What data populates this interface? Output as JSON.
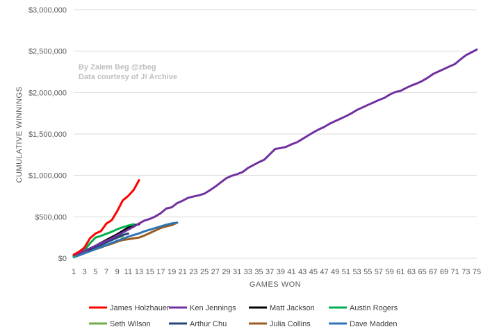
{
  "chart_data": {
    "type": "line",
    "title": "",
    "xlabel": "GAMES WON",
    "ylabel": "CUMULATIVE WINNINGS",
    "xlim": [
      1,
      75
    ],
    "ylim": [
      0,
      3000000
    ],
    "x_ticks": [
      1,
      3,
      5,
      7,
      9,
      11,
      13,
      15,
      17,
      19,
      21,
      23,
      25,
      27,
      29,
      31,
      33,
      35,
      37,
      39,
      41,
      43,
      45,
      47,
      49,
      51,
      53,
      55,
      57,
      59,
      61,
      63,
      65,
      67,
      69,
      71,
      73,
      75
    ],
    "y_ticks": [
      {
        "value": 0,
        "label": "$0"
      },
      {
        "value": 500000,
        "label": "$500,000"
      },
      {
        "value": 1000000,
        "label": "$1,000,000"
      },
      {
        "value": 1500000,
        "label": "$1,500,000"
      },
      {
        "value": 2000000,
        "label": "$2,000,000"
      },
      {
        "value": 2500000,
        "label": "$2,500,000"
      },
      {
        "value": 3000000,
        "label": "$3,000,000"
      }
    ],
    "grid": true,
    "legend_position": "bottom",
    "annotations": [
      "By Zaiem Beg @zbeg",
      "Data courtesy of J! Archive"
    ],
    "series": [
      {
        "name": "Seth Wilson",
        "color": "#70ad47",
        "values": [
          20000,
          45000,
          80000,
          110000,
          140000,
          170000,
          200000,
          225000,
          250000,
          265000
        ]
      },
      {
        "name": "Arthur Chu",
        "color": "#264478",
        "values": [
          15000,
          40000,
          70000,
          100000,
          130000,
          160000,
          190000,
          220000,
          250000,
          280000,
          298000
        ]
      },
      {
        "name": "Matt Jackson",
        "color": "#000000",
        "values": [
          20000,
          50000,
          85000,
          115000,
          150000,
          185000,
          220000,
          255000,
          290000,
          330000,
          370000,
          400000,
          411000
        ]
      },
      {
        "name": "Julia Collins",
        "color": "#9c5b1c",
        "values": [
          25000,
          45000,
          65000,
          85000,
          110000,
          130000,
          155000,
          175000,
          200000,
          220000,
          230000,
          240000,
          250000,
          275000,
          305000,
          335000,
          365000,
          385000,
          400000,
          429000
        ]
      },
      {
        "name": "Dave Madden",
        "color": "#2e75b6",
        "values": [
          15000,
          35000,
          60000,
          85000,
          110000,
          135000,
          160000,
          185000,
          210000,
          235000,
          260000,
          280000,
          300000,
          325000,
          345000,
          365000,
          385000,
          405000,
          420000,
          430000
        ]
      },
      {
        "name": "Austin Rogers",
        "color": "#00b050",
        "values": [
          25000,
          60000,
          100000,
          180000,
          250000,
          270000,
          295000,
          320000,
          350000,
          375000,
          395000,
          411000
        ]
      },
      {
        "name": "Ken Jennings",
        "color": "#7030a0",
        "values": [
          38000,
          60000,
          90000,
          120000,
          150000,
          180000,
          210000,
          240000,
          275000,
          310000,
          345000,
          380000,
          420000,
          455000,
          475000,
          505000,
          545000,
          600000,
          615000,
          665000,
          695000,
          730000,
          745000,
          760000,
          780000,
          820000,
          865000,
          915000,
          965000,
          995000,
          1015000,
          1040000,
          1090000,
          1125000,
          1160000,
          1190000,
          1255000,
          1320000,
          1330000,
          1345000,
          1375000,
          1400000,
          1440000,
          1480000,
          1520000,
          1555000,
          1585000,
          1625000,
          1655000,
          1685000,
          1715000,
          1750000,
          1790000,
          1820000,
          1850000,
          1880000,
          1910000,
          1935000,
          1975000,
          2005000,
          2020000,
          2055000,
          2085000,
          2110000,
          2140000,
          2180000,
          2225000,
          2255000,
          2285000,
          2315000,
          2345000,
          2400000,
          2450000,
          2485000,
          2520000
        ]
      },
      {
        "name": "James Holzhauer",
        "color": "#ff0000",
        "values": [
          43000,
          80000,
          131000,
          241000,
          298000,
          327000,
          418000,
          461000,
          570000,
          696000,
          752000,
          824000,
          943000
        ]
      }
    ],
    "legend": [
      "James Holzhauer",
      "Ken Jennings",
      "Matt Jackson",
      "Austin Rogers",
      "Seth Wilson",
      "Arthur Chu",
      "Julia Collins",
      "Dave Madden"
    ]
  }
}
